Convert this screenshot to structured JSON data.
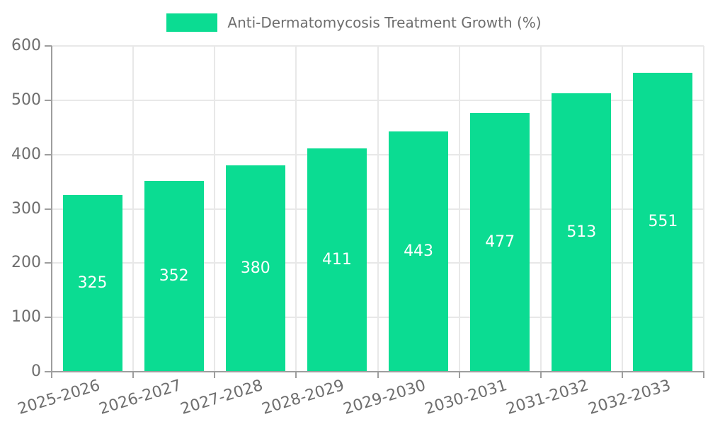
{
  "legend": {
    "label": "Anti-Dermatomycosis Treatment Growth (%)"
  },
  "chart_data": {
    "type": "bar",
    "title": "Anti-Dermatomycosis Treatment Growth (%)",
    "categories": [
      "2025-2026",
      "2026-2027",
      "2027-2028",
      "2028-2029",
      "2029-2030",
      "2030-2031",
      "2031-2032",
      "2032-2033"
    ],
    "values": [
      325,
      352,
      380,
      411,
      443,
      477,
      513,
      551
    ],
    "xlabel": "",
    "ylabel": "",
    "ylim": [
      0,
      600
    ],
    "yticks": [
      0,
      100,
      200,
      300,
      400,
      500,
      600
    ],
    "grid": true,
    "legend_position": "top-center",
    "colors": {
      "bar": "#0bdc92",
      "grid": "#e8e8e8",
      "axis": "#9e9e9e",
      "tick_text": "#6e6e6e",
      "value_text": "#ffffff"
    }
  }
}
